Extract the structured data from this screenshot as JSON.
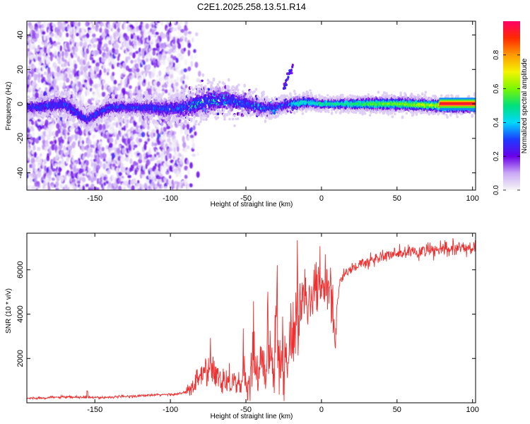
{
  "title": "C2E1.2025.258.13.51.R14",
  "chart_data": [
    {
      "type": "heatmap",
      "xlabel": "Height of straight line (km)",
      "ylabel": "Frequency (Hz)",
      "xlim": [
        -195,
        102
      ],
      "ylim": [
        -50,
        48
      ],
      "xticks": [
        -150,
        -100,
        -50,
        0,
        50,
        100
      ],
      "yticks": [
        -40,
        -20,
        0,
        20,
        40
      ],
      "colorbar": {
        "label": "Normalized spectral amplitude",
        "range": [
          0,
          1
        ],
        "ticks": [
          "0.0",
          "0.2",
          "0.4",
          "0.6",
          "0.8"
        ],
        "colors": [
          "#f7f7f7",
          "#c9a8f5",
          "#6a00e8",
          "#1d3bff",
          "#00d8ff",
          "#00e07a",
          "#7bf700",
          "#f4f400",
          "#ff9900",
          "#ff2a00",
          "#ff0066"
        ]
      },
      "ridge": {
        "description": "frequency ridge centred near 0 Hz",
        "x": [
          -190,
          -170,
          -155,
          -140,
          -120,
          -100,
          -90,
          -80,
          -70,
          -60,
          -50,
          -40,
          -30,
          -20,
          -10,
          0,
          10,
          30,
          50,
          80,
          100
        ],
        "center_hz": [
          -2,
          0,
          -9,
          -2,
          -2,
          -3,
          -2,
          1,
          2,
          2,
          0,
          -2,
          -2,
          0,
          1,
          0,
          0,
          0,
          0,
          -1,
          -1
        ],
        "width_hz": [
          6,
          8,
          6,
          6,
          6,
          8,
          10,
          12,
          11,
          10,
          8,
          7,
          6,
          5,
          5,
          4,
          4,
          5,
          5,
          5,
          5
        ]
      },
      "annotations": {
        "streak": {
          "x": [
            -25,
            -19
          ],
          "y": [
            10,
            22
          ]
        }
      }
    },
    {
      "type": "line",
      "xlabel": "Height of straight line (km)",
      "ylabel": "SNR (10 * v/v)",
      "xlim": [
        -195,
        102
      ],
      "ylim": [
        0,
        7650
      ],
      "xticks": [
        -150,
        -100,
        -50,
        0,
        50,
        100
      ],
      "yticks": [
        2000,
        4000,
        6000
      ],
      "line_color": "#f03030",
      "series": [
        {
          "name": "SNR",
          "x": [
            -195,
            -175,
            -160,
            -150,
            -130,
            -110,
            -100,
            -95,
            -90,
            -85,
            -80,
            -75,
            -70,
            -65,
            -60,
            -55,
            -50,
            -48,
            -45,
            -42,
            -40,
            -37,
            -35,
            -32,
            -30,
            -27,
            -25,
            -22,
            -20,
            -17,
            -15,
            -12,
            -10,
            -7,
            -5,
            -2,
            0,
            3,
            5,
            7,
            8,
            9,
            10,
            12,
            15,
            20,
            25,
            30,
            35,
            40,
            45,
            50,
            55,
            60,
            70,
            80,
            90,
            100,
            102
          ],
          "y": [
            200,
            250,
            250,
            230,
            280,
            350,
            380,
            400,
            470,
            700,
            1200,
            1500,
            1250,
            1100,
            1000,
            900,
            800,
            900,
            1600,
            1300,
            2200,
            900,
            2600,
            1300,
            3000,
            1900,
            2800,
            1600,
            3000,
            3900,
            4300,
            4800,
            4500,
            4600,
            5300,
            5000,
            5300,
            5500,
            5600,
            4900,
            3200,
            2600,
            4200,
            5400,
            5800,
            6050,
            6250,
            6300,
            6500,
            6600,
            6650,
            6700,
            6750,
            6800,
            6850,
            6900,
            6950,
            7000,
            7050
          ]
        }
      ]
    }
  ]
}
